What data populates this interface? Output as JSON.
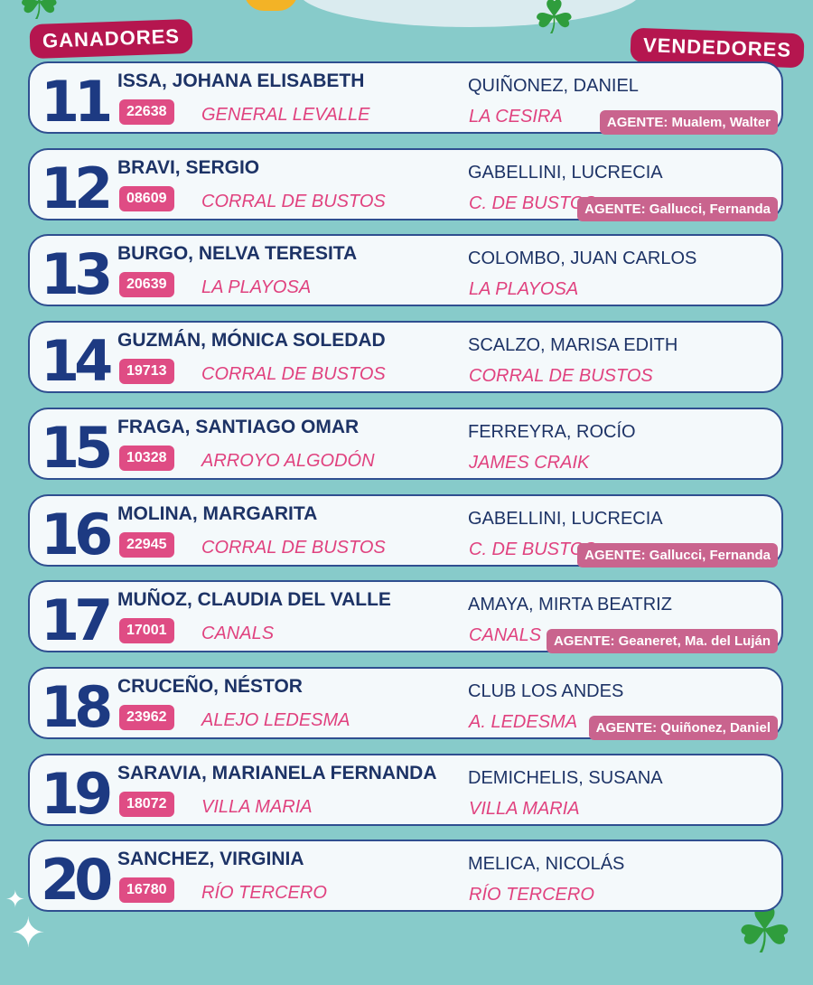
{
  "headers": {
    "winners": "GANADORES",
    "sellers": "VENDEDORES"
  },
  "colors": {
    "background": "#87cbca",
    "number": "#1d3a82",
    "accent_pink": "#e0427f",
    "header_badge": "#b5164f",
    "agent_badge": "#c9648e"
  },
  "rows": [
    {
      "number": "11",
      "winner": "ISSA, JOHANA ELISABETH",
      "code": "22638",
      "winner_city": "GENERAL LEVALLE",
      "seller": "QUIÑONEZ, DANIEL",
      "seller_city": "LA CESIRA",
      "agent": "AGENTE: Mualem, Walter"
    },
    {
      "number": "12",
      "winner": "BRAVI, SERGIO",
      "code": "08609",
      "winner_city": "CORRAL DE BUSTOS",
      "seller": "GABELLINI, LUCRECIA",
      "seller_city": "C. DE BUSTOS",
      "agent": "AGENTE: Gallucci, Fernanda"
    },
    {
      "number": "13",
      "winner": "BURGO, NELVA TERESITA",
      "code": "20639",
      "winner_city": "LA PLAYOSA",
      "seller": "COLOMBO, JUAN CARLOS",
      "seller_city": "LA PLAYOSA",
      "agent": null
    },
    {
      "number": "14",
      "winner": "GUZMÁN, MÓNICA SOLEDAD",
      "code": "19713",
      "winner_city": "CORRAL DE BUSTOS",
      "seller": "SCALZO, MARISA EDITH",
      "seller_city": "CORRAL DE BUSTOS",
      "agent": null
    },
    {
      "number": "15",
      "winner": "FRAGA, SANTIAGO OMAR",
      "code": "10328",
      "winner_city": "ARROYO ALGODÓN",
      "seller": "FERREYRA, ROCÍO",
      "seller_city": "JAMES CRAIK",
      "agent": null
    },
    {
      "number": "16",
      "winner": "MOLINA, MARGARITA",
      "code": "22945",
      "winner_city": "CORRAL DE BUSTOS",
      "seller": "GABELLINI, LUCRECIA",
      "seller_city": "C. DE BUSTOS",
      "agent": "AGENTE: Gallucci, Fernanda"
    },
    {
      "number": "17",
      "winner": "MUÑOZ, CLAUDIA DEL VALLE",
      "code": "17001",
      "winner_city": "CANALS",
      "seller": "AMAYA, MIRTA BEATRIZ",
      "seller_city": "CANALS",
      "agent": "AGENTE: Geaneret, Ma. del Luján"
    },
    {
      "number": "18",
      "winner": "CRUCEÑO, NÉSTOR",
      "code": "23962",
      "winner_city": "ALEJO LEDESMA",
      "seller": "CLUB LOS ANDES",
      "seller_city": "A. LEDESMA",
      "agent": "AGENTE: Quiñonez, Daniel"
    },
    {
      "number": "19",
      "winner": "SARAVIA, MARIANELA FERNANDA",
      "code": "18072",
      "winner_city": "VILLA MARIA",
      "seller": "DEMICHELIS, SUSANA",
      "seller_city": "VILLA MARIA",
      "agent": null
    },
    {
      "number": "20",
      "winner": "SANCHEZ, VIRGINIA",
      "code": "16780",
      "winner_city": "RÍO TERCERO",
      "seller": "MELICA, NICOLÁS",
      "seller_city": "RÍO TERCERO",
      "agent": null
    }
  ]
}
